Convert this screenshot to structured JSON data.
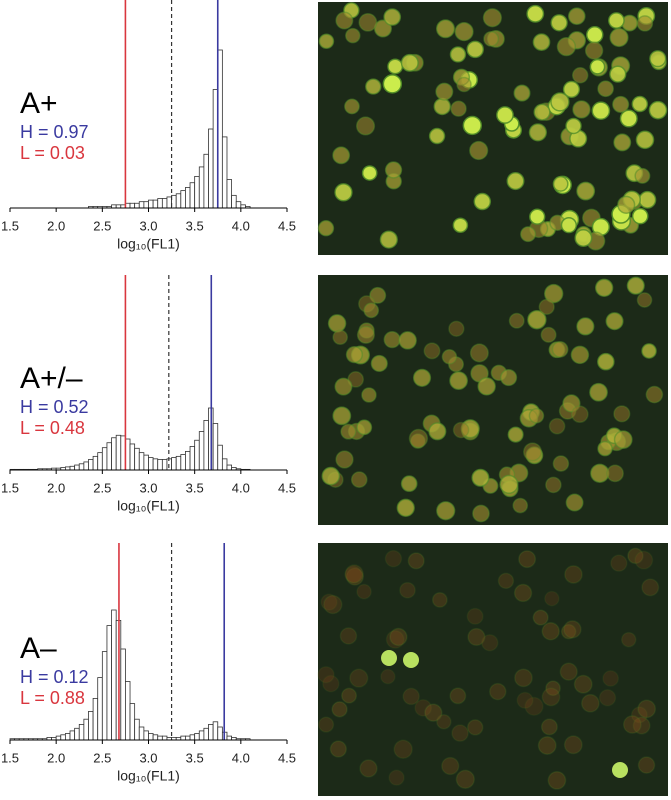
{
  "chart_data": [
    {
      "type": "histogram",
      "title": "A+",
      "annotations": [
        {
          "text": "H = 0.97",
          "color": "#3a3aa0"
        },
        {
          "text": "L = 0.03",
          "color": "#d9363e"
        }
      ],
      "xlabel": "log₁₀(FL1)",
      "xlim": [
        1.5,
        4.5
      ],
      "xticks": [
        1.5,
        {
          "value": 2,
          "label": "2.0"
        },
        2.5,
        {
          "value": 3,
          "label": "3.0"
        },
        3.5,
        {
          "value": 4,
          "label": "4.0"
        },
        4.5
      ],
      "bins": [
        2.35,
        2.4,
        2.45,
        2.5,
        2.55,
        2.6,
        2.65,
        2.7,
        2.75,
        2.8,
        2.85,
        2.9,
        2.95,
        3.0,
        3.05,
        3.1,
        3.15,
        3.2,
        3.25,
        3.3,
        3.35,
        3.4,
        3.45,
        3.5,
        3.55,
        3.6,
        3.65,
        3.7,
        3.75,
        3.8,
        3.85,
        3.9,
        3.95,
        4.0,
        4.05,
        4.1
      ],
      "values": [
        1,
        1,
        1,
        1,
        1,
        2,
        2,
        2,
        3,
        3,
        3,
        4,
        4,
        5,
        5,
        6,
        6,
        7,
        8,
        9,
        11,
        13,
        16,
        20,
        26,
        34,
        50,
        75,
        100,
        45,
        18,
        8,
        4,
        2,
        1
      ],
      "vlines": [
        {
          "value": 2.75,
          "color": "#d9363e"
        },
        {
          "value": 3.25,
          "color": "#333333",
          "dashed": true
        },
        {
          "value": 3.75,
          "color": "#3a3aa0"
        }
      ]
    },
    {
      "type": "histogram",
      "title": "A+/–",
      "annotations": [
        {
          "text": "H = 0.52",
          "color": "#3a3aa0"
        },
        {
          "text": "L = 0.48",
          "color": "#d9363e"
        }
      ],
      "xlabel": "log₁₀(FL1)",
      "xlim": [
        1.5,
        4.5
      ],
      "xticks": [
        1.5,
        {
          "value": 2,
          "label": "2.0"
        },
        2.5,
        {
          "value": 3,
          "label": "3.0"
        },
        3.5,
        {
          "value": 4,
          "label": "4.0"
        },
        4.5
      ],
      "bins": [
        1.5,
        1.55,
        1.6,
        1.65,
        1.7,
        1.75,
        1.8,
        1.85,
        1.9,
        1.95,
        2.0,
        2.05,
        2.1,
        2.15,
        2.2,
        2.25,
        2.3,
        2.35,
        2.4,
        2.45,
        2.5,
        2.55,
        2.6,
        2.65,
        2.7,
        2.75,
        2.8,
        2.85,
        2.9,
        2.95,
        3.0,
        3.05,
        3.1,
        3.15,
        3.2,
        3.25,
        3.3,
        3.35,
        3.4,
        3.45,
        3.5,
        3.55,
        3.6,
        3.65,
        3.7,
        3.75,
        3.8,
        3.85,
        3.9,
        3.95,
        4.0,
        4.05,
        4.1
      ],
      "values": [
        1,
        1,
        1,
        1,
        1,
        1,
        2,
        2,
        2,
        3,
        3,
        4,
        5,
        6,
        8,
        10,
        13,
        17,
        22,
        28,
        36,
        44,
        52,
        56,
        55,
        50,
        42,
        35,
        28,
        24,
        20,
        18,
        17,
        17,
        18,
        20,
        22,
        25,
        30,
        38,
        48,
        62,
        80,
        100,
        75,
        40,
        18,
        8,
        4,
        2,
        1,
        1
      ],
      "vlines": [
        {
          "value": 2.75,
          "color": "#d9363e"
        },
        {
          "value": 3.22,
          "color": "#333333",
          "dashed": true
        },
        {
          "value": 3.68,
          "color": "#3a3aa0"
        }
      ]
    },
    {
      "type": "histogram",
      "title": "A–",
      "annotations": [
        {
          "text": "H = 0.12",
          "color": "#3a3aa0"
        },
        {
          "text": "L = 0.88",
          "color": "#d9363e"
        }
      ],
      "xlabel": "log₁₀(FL1)",
      "xlim": [
        1.5,
        4.5
      ],
      "xticks": [
        1.5,
        {
          "value": 2,
          "label": "2.0"
        },
        2.5,
        {
          "value": 3,
          "label": "3.0"
        },
        3.5,
        {
          "value": 4,
          "label": "4.0"
        },
        4.5
      ],
      "bins": [
        1.5,
        1.55,
        1.6,
        1.65,
        1.7,
        1.75,
        1.8,
        1.85,
        1.9,
        1.95,
        2.0,
        2.05,
        2.1,
        2.15,
        2.2,
        2.25,
        2.3,
        2.35,
        2.4,
        2.45,
        2.5,
        2.55,
        2.6,
        2.65,
        2.7,
        2.75,
        2.8,
        2.85,
        2.9,
        2.95,
        3.0,
        3.05,
        3.1,
        3.15,
        3.2,
        3.25,
        3.3,
        3.35,
        3.4,
        3.45,
        3.5,
        3.55,
        3.6,
        3.65,
        3.7,
        3.75,
        3.8,
        3.85,
        3.9,
        3.95,
        4.0,
        4.05,
        4.1
      ],
      "values": [
        1,
        1,
        1,
        1,
        1,
        1,
        1,
        1,
        2,
        2,
        3,
        4,
        5,
        7,
        9,
        12,
        16,
        22,
        32,
        48,
        68,
        88,
        100,
        92,
        70,
        45,
        28,
        16,
        10,
        7,
        5,
        4,
        3,
        3,
        2,
        2,
        2,
        3,
        3,
        4,
        5,
        7,
        9,
        12,
        14,
        10,
        6,
        3,
        2,
        1,
        1,
        1
      ],
      "vlines": [
        {
          "value": 2.68,
          "color": "#d9363e"
        },
        {
          "value": 3.25,
          "color": "#333333",
          "dashed": true
        },
        {
          "value": 3.82,
          "color": "#3a3aa0"
        }
      ]
    }
  ]
}
